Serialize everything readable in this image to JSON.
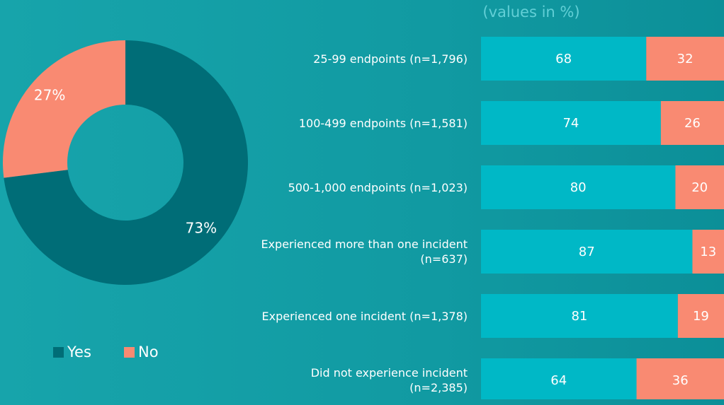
{
  "chart_data": [
    {
      "type": "pie",
      "donut": true,
      "categories": [
        "Yes",
        "No"
      ],
      "values": [
        73,
        27
      ],
      "value_labels": [
        "73%",
        "27%"
      ],
      "colors": [
        "#006d77",
        "#f98a72"
      ],
      "legend": "bottom"
    },
    {
      "type": "bar",
      "orientation": "horizontal",
      "stacked": true,
      "subtitle": "(values in %)",
      "categories": [
        "25-99 endpoints (n=1,796)",
        "100-499 endpoints (n=1,581)",
        "500-1,000 endpoints (n=1,023)",
        "Experienced more than one incident (n=637)",
        "Experienced one incident (n=1,378)",
        "Did not experience incident (n=2,385)"
      ],
      "series": [
        {
          "color": "#00b8c6",
          "values": [
            68,
            74,
            80,
            87,
            81,
            64
          ]
        },
        {
          "color": "#f98a72",
          "values": [
            32,
            26,
            20,
            13,
            19,
            36
          ]
        }
      ],
      "xlim": [
        0,
        100
      ]
    }
  ]
}
